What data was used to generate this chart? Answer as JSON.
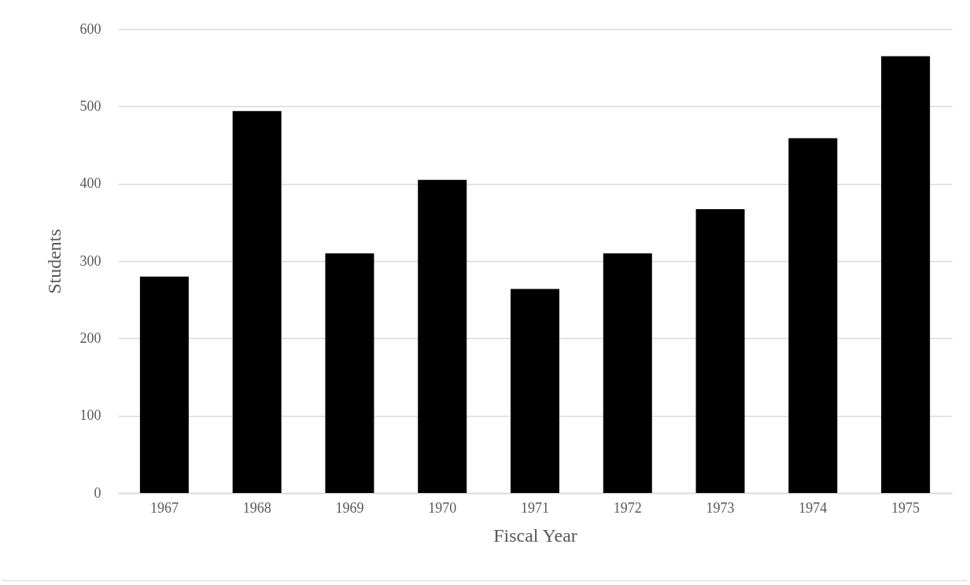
{
  "chart_data": {
    "type": "bar",
    "xlabel": "Fiscal Year",
    "ylabel": "Students",
    "categories": [
      "1967",
      "1968",
      "1969",
      "1970",
      "1971",
      "1972",
      "1973",
      "1974",
      "1975"
    ],
    "values": [
      280,
      494,
      310,
      405,
      264,
      310,
      367,
      459,
      565
    ],
    "color": "#000000",
    "ylim": [
      0,
      600
    ],
    "yticks": [
      0,
      100,
      200,
      300,
      400,
      500,
      600
    ],
    "grid": "y"
  }
}
